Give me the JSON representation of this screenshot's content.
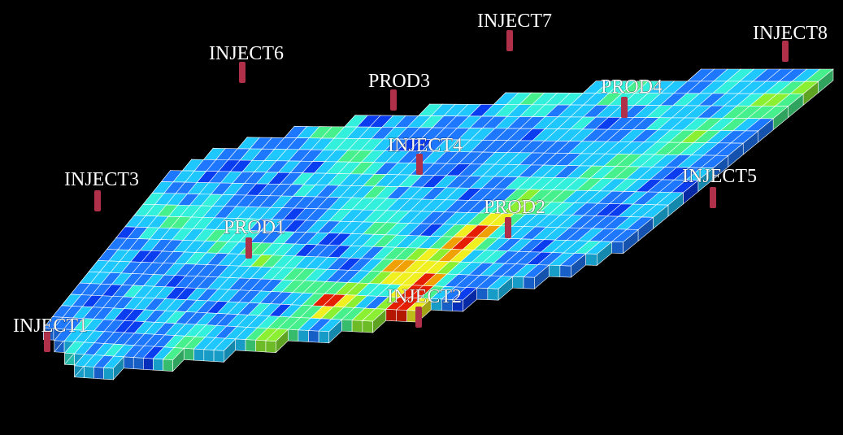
{
  "scene": {
    "background": "#000000",
    "grid_line_color": "#ffffff",
    "well_color": "#b0304a",
    "colormap": [
      "#0000c8",
      "#0a3cf0",
      "#1e78ff",
      "#1ec8ff",
      "#32f0dc",
      "#46f08c",
      "#8cf032",
      "#f0f020",
      "#f0a000",
      "#e61e00"
    ]
  },
  "wells": [
    {
      "name": "INJECT1"
    },
    {
      "name": "INJECT2"
    },
    {
      "name": "INJECT3"
    },
    {
      "name": "INJECT4"
    },
    {
      "name": "INJECT5"
    },
    {
      "name": "INJECT6"
    },
    {
      "name": "INJECT7"
    },
    {
      "name": "INJECT8"
    },
    {
      "name": "PROD1"
    },
    {
      "name": "PROD2"
    },
    {
      "name": "PROD3"
    },
    {
      "name": "PROD4"
    }
  ]
}
